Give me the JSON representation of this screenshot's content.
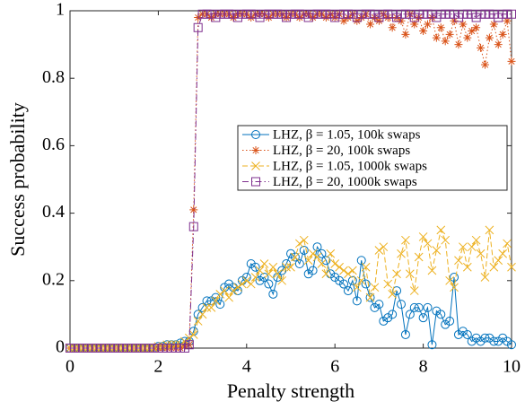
{
  "chart_data": {
    "type": "line",
    "xlabel": "Penalty strength",
    "ylabel": "Success probability",
    "xlim": [
      0,
      10
    ],
    "xticks": [
      0,
      2,
      4,
      6,
      8,
      10
    ],
    "ylim": [
      0,
      1
    ],
    "yticks": [
      0,
      0.2,
      0.4,
      0.6,
      0.8,
      1
    ],
    "grid": false,
    "legend": "right",
    "x": [
      0,
      0.1,
      0.2,
      0.3,
      0.4,
      0.5,
      0.6,
      0.7,
      0.8,
      0.9,
      1,
      1.1,
      1.2,
      1.3,
      1.4,
      1.5,
      1.6,
      1.7,
      1.8,
      1.9,
      2,
      2.1,
      2.2,
      2.3,
      2.4,
      2.5,
      2.6,
      2.7,
      2.8,
      2.9,
      3,
      3.1,
      3.2,
      3.3,
      3.4,
      3.5,
      3.6,
      3.7,
      3.8,
      3.9,
      4,
      4.1,
      4.2,
      4.3,
      4.4,
      4.5,
      4.6,
      4.7,
      4.8,
      4.9,
      5,
      5.1,
      5.2,
      5.3,
      5.4,
      5.5,
      5.6,
      5.7,
      5.8,
      5.9,
      6,
      6.1,
      6.2,
      6.3,
      6.4,
      6.5,
      6.6,
      6.7,
      6.8,
      6.9,
      7,
      7.1,
      7.2,
      7.3,
      7.4,
      7.5,
      7.6,
      7.7,
      7.8,
      7.9,
      8,
      8.1,
      8.2,
      8.3,
      8.4,
      8.5,
      8.6,
      8.7,
      8.8,
      8.9,
      9,
      9.1,
      9.2,
      9.3,
      9.4,
      9.5,
      9.6,
      9.7,
      9.8,
      9.9,
      10
    ],
    "series": [
      {
        "name": "LHZ, β = 1.05, 100k swaps",
        "color": "#0072BD",
        "line_style": "solid",
        "marker": "circle",
        "values": [
          0,
          0,
          0,
          0,
          0,
          0,
          0,
          0,
          0,
          0,
          0,
          0,
          0,
          0,
          0,
          0,
          0,
          0,
          0,
          0,
          0.005,
          0.005,
          0.01,
          0.01,
          0.01,
          0.015,
          0.02,
          0.02,
          0.05,
          0.1,
          0.12,
          0.14,
          0.14,
          0.15,
          0.13,
          0.18,
          0.19,
          0.18,
          0.17,
          0.2,
          0.21,
          0.25,
          0.24,
          0.2,
          0.21,
          0.19,
          0.16,
          0.21,
          0.23,
          0.25,
          0.28,
          0.27,
          0.25,
          0.29,
          0.22,
          0.23,
          0.3,
          0.28,
          0.26,
          0.22,
          0.21,
          0.2,
          0.19,
          0.17,
          0.2,
          0.14,
          0.26,
          0.19,
          0.15,
          0.12,
          0.13,
          0.08,
          0.09,
          0.1,
          0.17,
          0.13,
          0.04,
          0.1,
          0.12,
          0.12,
          0.09,
          0.12,
          0.01,
          0.11,
          0.1,
          0.07,
          0.08,
          0.21,
          0.04,
          0.05,
          0.04,
          0.02,
          0.03,
          0.02,
          0.03,
          0.03,
          0.02,
          0.02,
          0.03,
          0.02,
          0.01
        ]
      },
      {
        "name": "LHZ, β = 20, 100k swaps",
        "color": "#D95319",
        "line_style": "dotted",
        "marker": "asterisk",
        "values": [
          0,
          0,
          0,
          0,
          0,
          0,
          0,
          0,
          0,
          0,
          0,
          0,
          0,
          0,
          0,
          0,
          0,
          0,
          0,
          0,
          0,
          0,
          0,
          0,
          0,
          0,
          0.005,
          0.01,
          0.41,
          0.98,
          0.99,
          0.99,
          0.98,
          0.99,
          0.99,
          0.99,
          0.99,
          0.98,
          0.99,
          0.99,
          0.99,
          0.98,
          0.99,
          0.99,
          0.99,
          0.98,
          0.99,
          0.99,
          0.99,
          0.98,
          0.99,
          0.99,
          0.98,
          0.99,
          0.99,
          0.98,
          0.99,
          0.99,
          0.98,
          0.99,
          0.98,
          0.99,
          0.97,
          0.98,
          0.99,
          0.97,
          0.98,
          0.99,
          0.96,
          0.98,
          0.97,
          0.99,
          0.98,
          0.95,
          0.98,
          0.97,
          0.93,
          0.99,
          0.96,
          0.98,
          0.94,
          0.96,
          0.98,
          0.92,
          0.95,
          0.91,
          0.93,
          0.97,
          0.9,
          0.96,
          0.92,
          0.94,
          0.95,
          0.89,
          0.84,
          0.92,
          0.96,
          0.9,
          0.93,
          0.97,
          0.85
        ]
      },
      {
        "name": "LHZ, β = 1.05, 1000k swaps",
        "color": "#EDB120",
        "line_style": "dashed",
        "marker": "cross",
        "values": [
          0,
          0,
          0,
          0,
          0,
          0,
          0,
          0,
          0,
          0,
          0,
          0,
          0,
          0,
          0,
          0,
          0,
          0,
          0,
          0,
          0.005,
          0.005,
          0.01,
          0.01,
          0.01,
          0.01,
          0.02,
          0.03,
          0.04,
          0.08,
          0.1,
          0.12,
          0.12,
          0.14,
          0.16,
          0.17,
          0.15,
          0.17,
          0.18,
          0.19,
          0.2,
          0.19,
          0.21,
          0.23,
          0.25,
          0.22,
          0.24,
          0.22,
          0.2,
          0.24,
          0.24,
          0.27,
          0.31,
          0.32,
          0.26,
          0.28,
          0.27,
          0.25,
          0.22,
          0.28,
          0.25,
          0.24,
          0.23,
          0.22,
          0.23,
          0.18,
          0.2,
          0.24,
          0.15,
          0.18,
          0.29,
          0.3,
          0.19,
          0.16,
          0.22,
          0.28,
          0.32,
          0.22,
          0.17,
          0.27,
          0.33,
          0.31,
          0.23,
          0.29,
          0.35,
          0.32,
          0.2,
          0.18,
          0.26,
          0.3,
          0.24,
          0.3,
          0.32,
          0.28,
          0.21,
          0.35,
          0.24,
          0.26,
          0.28,
          0.31,
          0.24
        ]
      },
      {
        "name": "LHZ, β = 20, 1000k swaps",
        "color": "#7E2F8E",
        "line_style": "dashdot",
        "marker": "square",
        "values": [
          0,
          0,
          0,
          0,
          0,
          0,
          0,
          0,
          0,
          0,
          0,
          0,
          0,
          0,
          0,
          0,
          0,
          0,
          0,
          0,
          0,
          0,
          0,
          0,
          0,
          0,
          0,
          0.01,
          0.36,
          0.95,
          0.99,
          0.99,
          0.99,
          0.98,
          0.99,
          0.99,
          0.99,
          0.99,
          0.98,
          0.99,
          0.99,
          0.99,
          0.99,
          0.98,
          0.99,
          0.99,
          0.99,
          0.99,
          0.99,
          0.98,
          0.99,
          0.99,
          0.99,
          0.99,
          0.98,
          0.99,
          0.99,
          0.99,
          0.99,
          0.99,
          0.98,
          0.99,
          0.99,
          0.99,
          0.99,
          0.98,
          0.99,
          0.99,
          0.99,
          0.99,
          0.98,
          0.99,
          0.99,
          0.99,
          0.98,
          0.99,
          0.99,
          0.99,
          0.98,
          0.99,
          0.99,
          0.99,
          0.99,
          0.98,
          0.99,
          0.99,
          0.99,
          0.99,
          0.98,
          0.99,
          0.99,
          0.99,
          0.98,
          0.99,
          0.99,
          0.99,
          0.99,
          0.98,
          0.99,
          0.99,
          0.99
        ]
      }
    ]
  }
}
